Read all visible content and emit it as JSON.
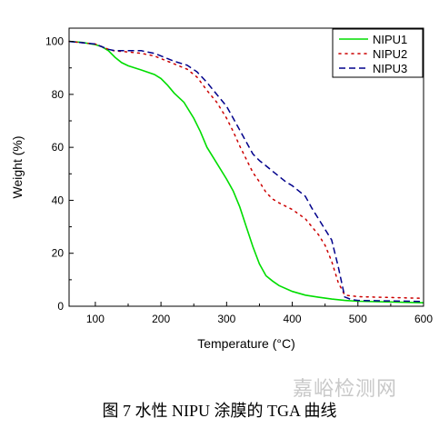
{
  "chart_data": {
    "type": "line",
    "title": "",
    "xlabel": "Temperature (°C)",
    "ylabel": "Weight (%)",
    "xlim": [
      60,
      600
    ],
    "ylim": [
      0,
      105
    ],
    "x_ticks": [
      100,
      200,
      300,
      400,
      500,
      600
    ],
    "y_ticks": [
      0,
      20,
      40,
      60,
      80,
      100
    ],
    "grid": false,
    "legend_position": "top-right",
    "series": [
      {
        "name": "NIPU1",
        "color": "#00dd00",
        "style": "solid",
        "x": [
          60,
          80,
          100,
          110,
          120,
          130,
          140,
          150,
          170,
          190,
          200,
          210,
          220,
          235,
          250,
          260,
          270,
          285,
          300,
          310,
          320,
          330,
          340,
          350,
          360,
          370,
          380,
          400,
          420,
          440,
          460,
          480,
          500,
          550,
          600
        ],
        "y": [
          100,
          99.6,
          98.8,
          98,
          96.5,
          94,
          92,
          90.8,
          89.2,
          87.5,
          86,
          83.5,
          80.5,
          77,
          71,
          66,
          60,
          54,
          48,
          43.5,
          37.5,
          30,
          22.5,
          16,
          11.5,
          9.5,
          7.8,
          5.6,
          4.2,
          3.4,
          2.7,
          2.2,
          1.9,
          1.6,
          1.3
        ]
      },
      {
        "name": "NIPU2",
        "color": "#cc0000",
        "style": "dotted",
        "x": [
          60,
          80,
          100,
          110,
          120,
          130,
          140,
          150,
          170,
          190,
          200,
          220,
          240,
          255,
          270,
          285,
          300,
          310,
          320,
          330,
          340,
          350,
          360,
          370,
          380,
          400,
          420,
          430,
          440,
          450,
          460,
          470,
          480,
          490,
          500,
          550,
          600
        ],
        "y": [
          100,
          99.5,
          99,
          98,
          97,
          96.4,
          96.2,
          96,
          95.5,
          94.5,
          93.5,
          91.5,
          89.5,
          86.5,
          81.5,
          77,
          71,
          66,
          60.5,
          55.5,
          50.5,
          47,
          43,
          40.5,
          39,
          36.5,
          33,
          30,
          27,
          23,
          17,
          9,
          4.2,
          3.9,
          3.6,
          3.3,
          3
        ]
      },
      {
        "name": "NIPU3",
        "color": "#00008b",
        "style": "dashed",
        "x": [
          60,
          80,
          100,
          110,
          120,
          130,
          140,
          150,
          170,
          190,
          200,
          220,
          240,
          255,
          270,
          285,
          300,
          310,
          320,
          330,
          340,
          350,
          360,
          370,
          380,
          390,
          400,
          410,
          420,
          430,
          440,
          450,
          460,
          470,
          480,
          490,
          500,
          550,
          600
        ],
        "y": [
          100,
          99.5,
          99,
          98,
          97,
          96.5,
          96.5,
          96.5,
          96.5,
          95.5,
          94.5,
          92.5,
          91,
          88.5,
          84.5,
          80,
          75.5,
          71,
          66.5,
          62,
          57.5,
          55,
          53,
          51,
          49,
          47,
          45.5,
          43.5,
          41.5,
          37,
          33,
          29,
          25,
          15,
          3.5,
          2.5,
          2.2,
          2,
          1.8
        ]
      }
    ]
  },
  "caption": "图 7 水性 NIPU 涂膜的 TGA  曲线",
  "watermark": "嘉峪检测网"
}
